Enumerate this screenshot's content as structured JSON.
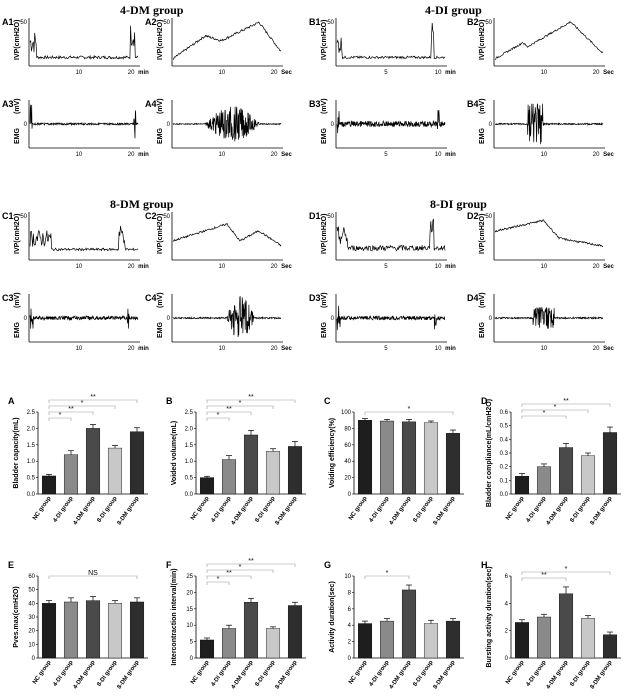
{
  "titles": {
    "g1": "4-DM group",
    "g2": "4-DI group",
    "g3": "8-DM group",
    "g4": "8-DI group"
  },
  "colors": {
    "nc": "#1e1e1e",
    "di4": "#8a8a8a",
    "dm4": "#4a4a4a",
    "di8": "#c8c8c8",
    "dm8": "#2e2e2e",
    "trace": "#000000",
    "bracket": "#999999"
  },
  "traces": [
    {
      "label": "A1",
      "kind": "ivp",
      "ylabel": "IVP(cmH2O)",
      "yticks": [
        "50"
      ],
      "xticks": [
        "10",
        "20"
      ],
      "unit": "min",
      "shape": "cmg"
    },
    {
      "label": "A2",
      "kind": "ivp",
      "ylabel": "IVP(cmH2O)",
      "yticks": [
        "50"
      ],
      "xticks": [
        "10",
        "20"
      ],
      "unit": "Sec",
      "shape": "void1"
    },
    {
      "label": "A3",
      "kind": "emg",
      "ylabel": "EMG",
      "yunit": "(mV)",
      "yticks": [
        "0"
      ],
      "xticks": [
        "10",
        "20"
      ],
      "unit": "min",
      "shape": "emgflat"
    },
    {
      "label": "A4",
      "kind": "emg",
      "ylabel": "EMG",
      "yunit": "(mV)",
      "yticks": [
        "0"
      ],
      "xticks": [
        "10",
        "20"
      ],
      "unit": "Sec",
      "shape": "burstwide"
    },
    {
      "label": "B1",
      "kind": "ivp",
      "ylabel": "IVP(cmH2O)",
      "yticks": [
        "50"
      ],
      "xticks": [
        "5",
        "10"
      ],
      "unit": "min",
      "shape": "cmg2"
    },
    {
      "label": "B2",
      "kind": "ivp",
      "ylabel": "IVP(cmH2O)",
      "yticks": [
        "50"
      ],
      "xticks": [
        "10",
        "20"
      ],
      "unit": "Sec",
      "shape": "void2"
    },
    {
      "label": "B3",
      "kind": "emg",
      "ylabel": "EMG",
      "yunit": "(mV)",
      "yticks": [
        "0"
      ],
      "xticks": [
        "5",
        "10"
      ],
      "unit": "min",
      "shape": "emgnoisy"
    },
    {
      "label": "B4",
      "kind": "emg",
      "ylabel": "EMG",
      "yunit": "(mV)",
      "yticks": [
        "0"
      ],
      "xticks": [
        "10",
        "20"
      ],
      "unit": "Sec",
      "shape": "burstnarrow"
    },
    {
      "label": "C1",
      "kind": "ivp",
      "ylabel": "IVP(cmH2O)",
      "yticks": [
        "50"
      ],
      "xticks": [
        "10",
        "20"
      ],
      "unit": "min",
      "shape": "cmg3"
    },
    {
      "label": "C2",
      "kind": "ivp",
      "ylabel": "IVP(cmH2O)",
      "yticks": [
        "50"
      ],
      "xticks": [
        "10",
        "20"
      ],
      "unit": "Sec",
      "shape": "void3"
    },
    {
      "label": "C3",
      "kind": "emg",
      "ylabel": "EMG",
      "yunit": "(mV)",
      "yticks": [
        "0"
      ],
      "xticks": [
        "10",
        "20"
      ],
      "unit": "min",
      "shape": "emgmid"
    },
    {
      "label": "C4",
      "kind": "emg",
      "ylabel": "EMG",
      "yunit": "(mV)",
      "yticks": [
        "0"
      ],
      "xticks": [
        "10",
        "20"
      ],
      "unit": "Sec",
      "shape": "burstlate"
    },
    {
      "label": "D1",
      "kind": "ivp",
      "ylabel": "IVP(cmH2O)",
      "yticks": [
        "50"
      ],
      "xticks": [
        "5",
        "10"
      ],
      "unit": "min",
      "shape": "cmg4"
    },
    {
      "label": "D2",
      "kind": "ivp",
      "ylabel": "IVP(cmH2O)",
      "yticks": [
        "50"
      ],
      "xticks": [
        "10",
        "20"
      ],
      "unit": "Sec",
      "shape": "void4"
    },
    {
      "label": "D3",
      "kind": "emg",
      "ylabel": "EMG",
      "yunit": "(mV)",
      "yticks": [
        "0"
      ],
      "xticks": [
        "5",
        "10"
      ],
      "unit": "min",
      "shape": "emgmid"
    },
    {
      "label": "D4",
      "kind": "emg",
      "ylabel": "EMG",
      "yunit": "(mV)",
      "yticks": [
        "0"
      ],
      "xticks": [
        "10",
        "20"
      ],
      "unit": "Sec",
      "shape": "burstsmall"
    }
  ],
  "chart_data": [
    {
      "type": "bar",
      "label": "A",
      "ylabel": "Bladder capacity(mL)",
      "categories": [
        "NC group",
        "4-DI group",
        "4-DM group",
        "8-DI group",
        "8-DM group"
      ],
      "values": [
        0.55,
        1.2,
        2.0,
        1.4,
        1.9
      ],
      "errors": [
        0.05,
        0.12,
        0.12,
        0.08,
        0.12
      ],
      "ylim": [
        0,
        2.5
      ],
      "yticks": [
        "0.0",
        "0.5",
        "1.0",
        "1.5",
        "2.0",
        "2.5"
      ],
      "brackets": [
        {
          "from": 0,
          "to": 1,
          "text": "*"
        },
        {
          "from": 0,
          "to": 2,
          "text": "**"
        },
        {
          "from": 0,
          "to": 3,
          "text": "*"
        },
        {
          "from": 0,
          "to": 4,
          "text": "**"
        }
      ]
    },
    {
      "type": "bar",
      "label": "B",
      "ylabel": "Voided volume(mL)",
      "categories": [
        "NC group",
        "4-DI group",
        "4-DM group",
        "8-DI group",
        "8-DM group"
      ],
      "values": [
        0.5,
        1.05,
        1.8,
        1.3,
        1.45
      ],
      "errors": [
        0.04,
        0.12,
        0.14,
        0.08,
        0.15
      ],
      "ylim": [
        0,
        2.5
      ],
      "yticks": [
        "0.0",
        "0.5",
        "1.0",
        "1.5",
        "2.0",
        "2.5"
      ],
      "brackets": [
        {
          "from": 0,
          "to": 1,
          "text": "*"
        },
        {
          "from": 0,
          "to": 2,
          "text": "**"
        },
        {
          "from": 0,
          "to": 3,
          "text": "*"
        },
        {
          "from": 0,
          "to": 4,
          "text": "**"
        }
      ]
    },
    {
      "type": "bar",
      "label": "C",
      "ylabel": "Voiding efficiency(%)",
      "categories": [
        "NC group",
        "4-DI group",
        "4-DM group",
        "8-DI group",
        "8-DM group"
      ],
      "values": [
        90,
        89,
        88,
        87,
        74
      ],
      "errors": [
        2,
        2,
        3,
        2,
        4
      ],
      "ylim": [
        0,
        100
      ],
      "yticks": [
        "0",
        "20",
        "40",
        "60",
        "80",
        "100"
      ],
      "brackets": [
        {
          "from": 0,
          "to": 4,
          "text": "*"
        }
      ]
    },
    {
      "type": "bar",
      "label": "D",
      "ylabel": "Bladder compliance(mL/cmH2O)",
      "categories": [
        "NC group",
        "4-DI group",
        "4-DM group",
        "8-DI group",
        "8-DM group"
      ],
      "values": [
        0.13,
        0.2,
        0.34,
        0.28,
        0.45
      ],
      "errors": [
        0.02,
        0.02,
        0.03,
        0.02,
        0.04
      ],
      "ylim": [
        0,
        0.6
      ],
      "yticks": [
        "0.0",
        "0.1",
        "0.2",
        "0.3",
        "0.4",
        "0.5",
        "0.6"
      ],
      "brackets": [
        {
          "from": 0,
          "to": 2,
          "text": "*"
        },
        {
          "from": 0,
          "to": 3,
          "text": "*"
        },
        {
          "from": 0,
          "to": 4,
          "text": "**"
        }
      ]
    },
    {
      "type": "bar",
      "label": "E",
      "ylabel": "Pves.max(cmH2O)",
      "categories": [
        "NC group",
        "4-DI group",
        "4-DM group",
        "8-DI group",
        "8-DM group"
      ],
      "values": [
        40,
        41,
        42,
        40,
        41
      ],
      "errors": [
        2,
        3,
        3,
        2,
        3
      ],
      "ylim": [
        0,
        60
      ],
      "yticks": [
        "0",
        "10",
        "20",
        "30",
        "40",
        "50",
        "60"
      ],
      "brackets": [
        {
          "from": 0,
          "to": 4,
          "text": "NS"
        }
      ]
    },
    {
      "type": "bar",
      "label": "F",
      "ylabel": "Intercontraction interval(min)",
      "categories": [
        "NC group",
        "4-DI group",
        "4-DM group",
        "8-DI group",
        "8-DM group"
      ],
      "values": [
        5.5,
        9,
        17,
        9,
        16
      ],
      "errors": [
        0.6,
        1,
        1.2,
        0.5,
        1
      ],
      "ylim": [
        0,
        25
      ],
      "yticks": [
        "0",
        "5",
        "10",
        "15",
        "20",
        "25"
      ],
      "brackets": [
        {
          "from": 0,
          "to": 1,
          "text": "*"
        },
        {
          "from": 0,
          "to": 2,
          "text": "**"
        },
        {
          "from": 0,
          "to": 3,
          "text": "*"
        },
        {
          "from": 0,
          "to": 4,
          "text": "**"
        }
      ]
    },
    {
      "type": "bar",
      "label": "G",
      "ylabel": "Activity duration(sec)",
      "categories": [
        "NC group",
        "4-DI group",
        "4-DM group",
        "8-DI group",
        "8-DM group"
      ],
      "values": [
        4.2,
        4.5,
        8.3,
        4.2,
        4.5
      ],
      "errors": [
        0.3,
        0.3,
        0.6,
        0.4,
        0.3
      ],
      "ylim": [
        0,
        10
      ],
      "yticks": [
        "0",
        "2",
        "4",
        "6",
        "8",
        "10"
      ],
      "brackets": [
        {
          "from": 0,
          "to": 2,
          "text": "*"
        }
      ]
    },
    {
      "type": "bar",
      "label": "H",
      "ylabel": "Bursting activity duration(sec)",
      "categories": [
        "NC group",
        "4-DI group",
        "4-DM group",
        "8-DI group",
        "8-DM group"
      ],
      "values": [
        2.6,
        3.0,
        4.7,
        2.9,
        1.7
      ],
      "errors": [
        0.2,
        0.2,
        0.5,
        0.2,
        0.2
      ],
      "ylim": [
        0,
        6
      ],
      "yticks": [
        "0",
        "2",
        "4",
        "6"
      ],
      "brackets": [
        {
          "from": 0,
          "to": 2,
          "text": "**"
        },
        {
          "from": 0,
          "to": 4,
          "text": "*"
        }
      ]
    }
  ]
}
